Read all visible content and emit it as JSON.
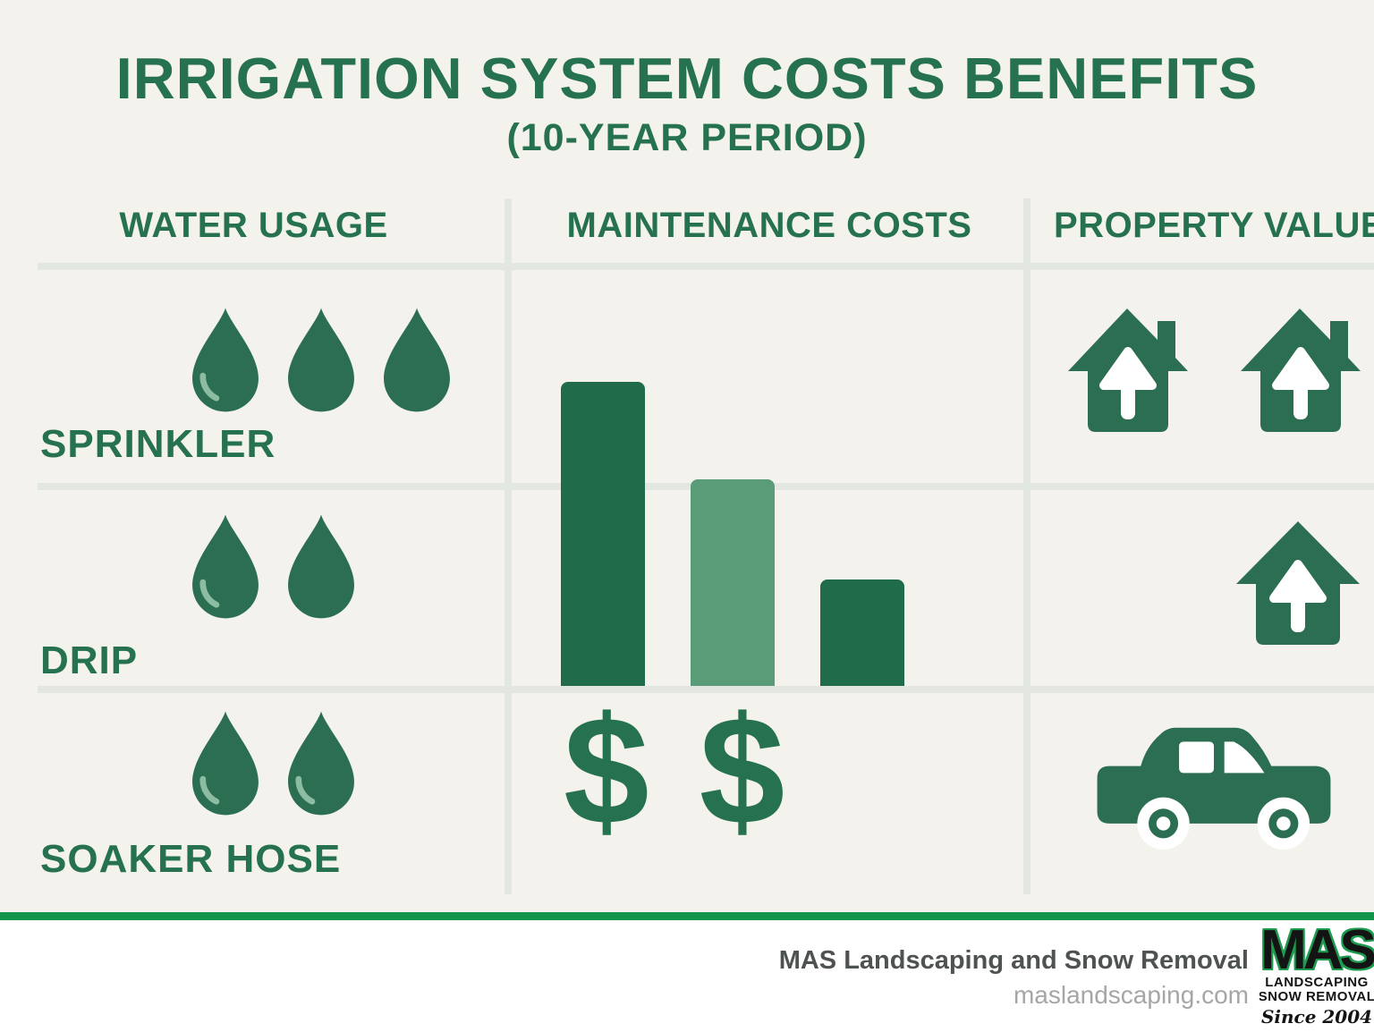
{
  "title": "IRRIGATION SYSTEM COSTS BENEFITS",
  "subtitle": "(10-YEAR PERIOD)",
  "columns": [
    {
      "label": "WATER USAGE"
    },
    {
      "label": "MAINTENANCE COSTS"
    },
    {
      "label": "PROPERTY VALUE"
    }
  ],
  "water_usage": {
    "rows": [
      {
        "label": "SPRINKLER",
        "drops": [
          {
            "highlight": true
          },
          {
            "highlight": false
          },
          {
            "highlight": false
          }
        ]
      },
      {
        "label": "DRIP",
        "drops": [
          {
            "highlight": true
          },
          {
            "highlight": false
          }
        ]
      },
      {
        "label": "SOAKER HOSE",
        "drops": [
          {
            "highlight": true
          },
          {
            "highlight": true
          }
        ]
      }
    ]
  },
  "maintenance": {
    "dollar_symbol": "$",
    "dollar_signs": [
      {},
      {}
    ]
  },
  "property_value": {
    "rows": [
      {
        "houses": [
          {},
          {}
        ]
      },
      {
        "houses": [
          {}
        ]
      },
      {
        "icon": "car"
      }
    ]
  },
  "chart_data": [
    {
      "type": "pictograph",
      "title": "WATER USAGE",
      "categories": [
        "SPRINKLER",
        "DRIP",
        "SOAKER HOSE"
      ],
      "values": [
        3,
        2,
        2
      ],
      "icon": "water-drop",
      "note": "number of drop icons indicates relative water usage over the 10-year period"
    },
    {
      "type": "bar",
      "title": "MAINTENANCE COSTS",
      "categories": [
        "Sprinkler",
        "Drip",
        "Soaker Hose"
      ],
      "values": [
        100,
        68,
        35
      ],
      "bar_colors": [
        "#1f6b4a",
        "#5a9c78",
        "#1f6b4a"
      ],
      "ylim": [
        0,
        100
      ],
      "xlabel": "",
      "ylabel": "",
      "grid": false,
      "legend": false,
      "note": "relative bar heights, no numeric axis shown; a row of 2 dollar-sign icons appears below the bars",
      "dollar_sign_count": 2
    },
    {
      "type": "pictograph",
      "title": "PROPERTY VALUE",
      "categories": [
        "Sprinkler",
        "Drip",
        "Soaker Hose"
      ],
      "values": [
        2,
        1,
        null
      ],
      "icon": "house-with-up-arrow",
      "note": "third row shows a car icon instead of houses"
    }
  ],
  "footer": {
    "company": "MAS Landscaping and Snow Removal",
    "website": "maslandscaping.com",
    "logo": {
      "acronym": "MAS",
      "line1": "LANDSCAPING",
      "line2": "SNOW REMOVAL",
      "tagline": "Since 2004"
    }
  },
  "colors": {
    "background": "#f3f2ec",
    "panel_divider": "#e3e7e1",
    "primary_green": "#26714f",
    "icon_green": "#2b6e51",
    "drop_highlight_green": "#8cbca2",
    "bar_dark_green": "#1f6b4a",
    "bar_light_green": "#5a9c78",
    "footer_rule_green": "#12944b",
    "footer_text_dark": "#4e5351",
    "footer_text_light": "#a6a6a4",
    "logo_black": "#141414",
    "logo_green": "#1d9a4e"
  }
}
